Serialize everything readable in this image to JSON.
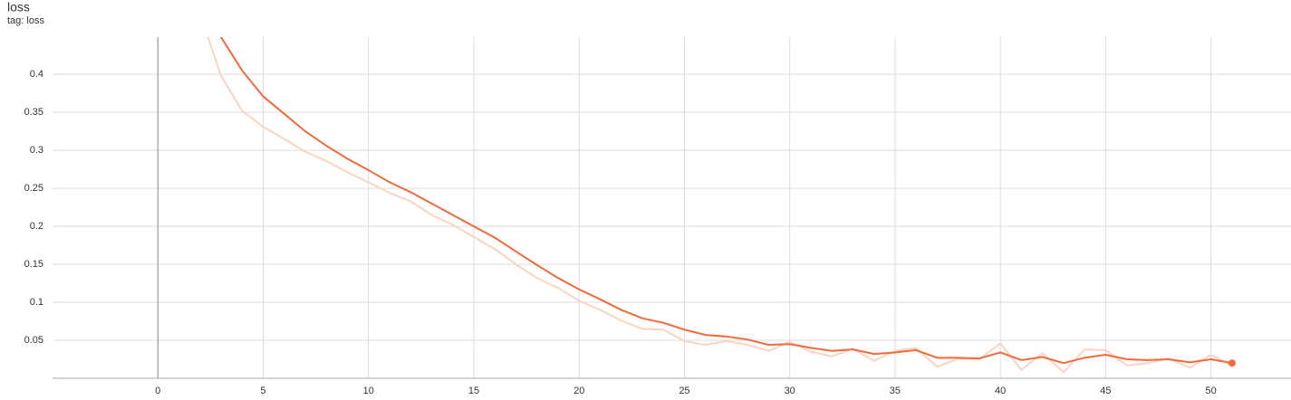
{
  "chart_data": {
    "type": "line",
    "title": "loss",
    "subtitle": "tag: loss",
    "x": [
      2,
      3,
      4,
      5,
      6,
      7,
      8,
      9,
      10,
      11,
      12,
      13,
      14,
      15,
      16,
      17,
      18,
      19,
      20,
      21,
      22,
      23,
      24,
      25,
      26,
      27,
      28,
      29,
      30,
      31,
      32,
      33,
      34,
      35,
      36,
      37,
      38,
      39,
      40,
      41,
      42,
      43,
      44,
      45,
      46,
      47,
      48,
      49,
      50,
      51
    ],
    "series": [
      {
        "color": "#fbd3c2",
        "values": [
          0.48,
          0.398,
          0.352,
          0.331,
          0.315,
          0.298,
          0.286,
          0.271,
          0.258,
          0.244,
          0.233,
          0.215,
          0.202,
          0.186,
          0.17,
          0.15,
          0.132,
          0.119,
          0.102,
          0.09,
          0.076,
          0.065,
          0.064,
          0.049,
          0.044,
          0.049,
          0.044,
          0.036,
          0.048,
          0.035,
          0.029,
          0.039,
          0.023,
          0.036,
          0.04,
          0.015,
          0.026,
          0.025,
          0.046,
          0.011,
          0.033,
          0.008,
          0.038,
          0.037,
          0.017,
          0.02,
          0.026,
          0.014,
          0.031,
          0.017
        ]
      },
      {
        "color": "#f06a3b",
        "values": [
          0.52,
          0.449,
          0.405,
          0.371,
          0.348,
          0.325,
          0.306,
          0.289,
          0.274,
          0.258,
          0.245,
          0.23,
          0.215,
          0.2,
          0.185,
          0.167,
          0.149,
          0.132,
          0.117,
          0.104,
          0.09,
          0.079,
          0.073,
          0.064,
          0.057,
          0.055,
          0.051,
          0.044,
          0.045,
          0.04,
          0.036,
          0.038,
          0.032,
          0.034,
          0.037,
          0.027,
          0.027,
          0.026,
          0.034,
          0.024,
          0.028,
          0.02,
          0.027,
          0.031,
          0.025,
          0.024,
          0.025,
          0.021,
          0.025,
          0.02
        ]
      }
    ],
    "xlim": [
      -5,
      53.8
    ],
    "xticks": [
      0,
      5,
      10,
      15,
      20,
      25,
      30,
      35,
      40,
      45,
      50
    ],
    "ylim": [
      0,
      0.449
    ],
    "yticks": [
      0.05,
      0.1,
      0.15,
      0.2,
      0.25,
      0.3,
      0.35,
      0.4
    ],
    "grid": true
  }
}
